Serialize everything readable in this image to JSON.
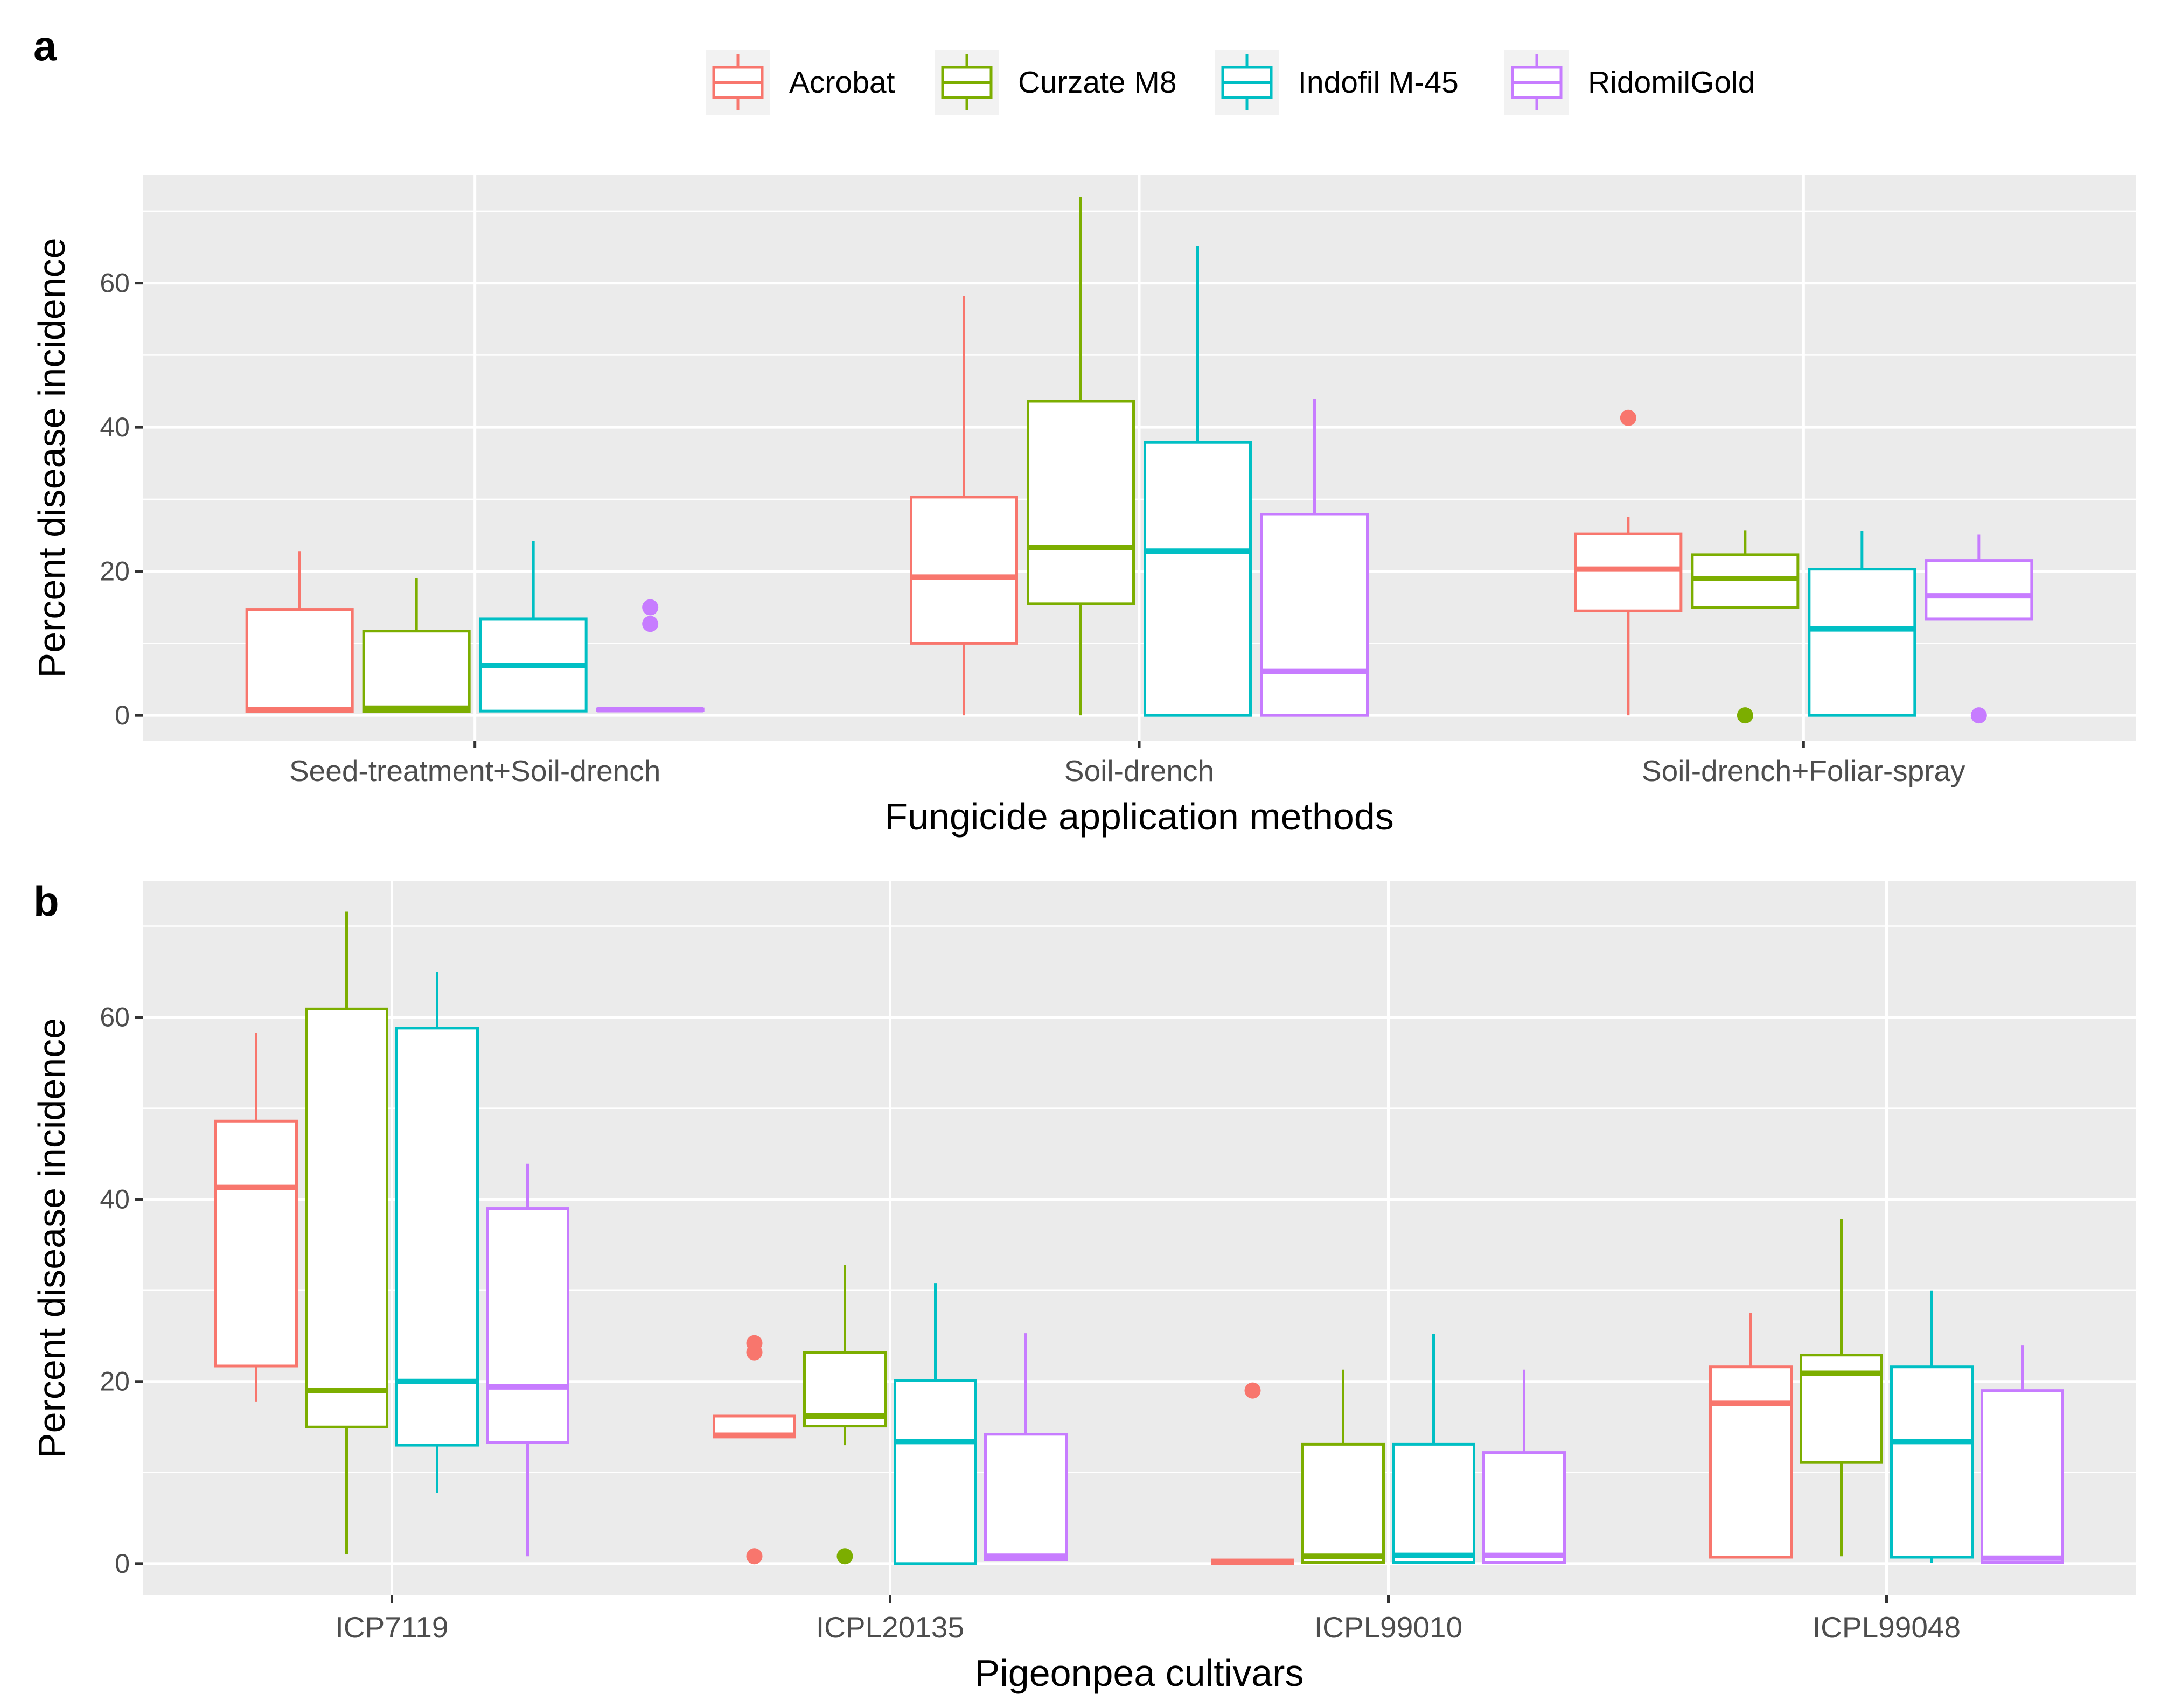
{
  "legend": {
    "entries": [
      {
        "name": "Acrobat",
        "color": "#F8766D"
      },
      {
        "name": "Curzate M8",
        "color": "#7CAE00"
      },
      {
        "name": "Indofil M-45",
        "color": "#00BFC4"
      },
      {
        "name": "RidomilGold",
        "color": "#C77CFF"
      }
    ]
  },
  "chart_data": [
    {
      "type": "box",
      "panel_label": "a",
      "xlabel": "Fungicide application methods",
      "ylabel": "Percent disease incidence",
      "ylim": [
        -3.5,
        75
      ],
      "yticks": [
        0,
        20,
        40,
        60
      ],
      "yticks_labels": [
        "0",
        "20",
        "40",
        "60"
      ],
      "categories": [
        "Seed-treatment+Soil-drench",
        "Soil-drench",
        "Soil-drench+Foliar-spray"
      ],
      "series": [
        {
          "name": "Acrobat",
          "boxes": [
            {
              "lower": 0.5,
              "q1": 0.5,
              "median": 0.8,
              "q3": 14.7,
              "upper": 22.8,
              "outliers": []
            },
            {
              "lower": 0,
              "q1": 10.0,
              "median": 19.2,
              "q3": 30.3,
              "upper": 58.2,
              "outliers": []
            },
            {
              "lower": 0,
              "q1": 14.5,
              "median": 20.3,
              "q3": 25.2,
              "upper": 27.6,
              "outliers": [
                41.3
              ]
            }
          ]
        },
        {
          "name": "Curzate M8",
          "boxes": [
            {
              "lower": 0.5,
              "q1": 0.5,
              "median": 1.0,
              "q3": 11.7,
              "upper": 19.0,
              "outliers": []
            },
            {
              "lower": 0,
              "q1": 15.5,
              "median": 23.3,
              "q3": 43.6,
              "upper": 72.0,
              "outliers": []
            },
            {
              "lower": 15.0,
              "q1": 15.0,
              "median": 19.0,
              "q3": 22.3,
              "upper": 25.7,
              "outliers": [
                0
              ]
            }
          ]
        },
        {
          "name": "Indofil M-45",
          "boxes": [
            {
              "lower": 0.6,
              "q1": 0.6,
              "median": 6.9,
              "q3": 13.4,
              "upper": 24.2,
              "outliers": []
            },
            {
              "lower": 0,
              "q1": 0,
              "median": 22.8,
              "q3": 37.9,
              "upper": 65.2,
              "outliers": []
            },
            {
              "lower": 0,
              "q1": 0,
              "median": 12.0,
              "q3": 20.3,
              "upper": 25.6,
              "outliers": []
            }
          ]
        },
        {
          "name": "RidomilGold",
          "boxes": [
            {
              "lower": 0.7,
              "q1": 0.7,
              "median": 0.8,
              "q3": 0.9,
              "upper": 0.9,
              "outliers": [
                12.7,
                15.0
              ]
            },
            {
              "lower": 0,
              "q1": 0,
              "median": 6.1,
              "q3": 27.9,
              "upper": 43.9,
              "outliers": []
            },
            {
              "lower": 13.4,
              "q1": 13.4,
              "median": 16.6,
              "q3": 21.5,
              "upper": 25.1,
              "outliers": [
                0
              ]
            }
          ]
        }
      ]
    },
    {
      "type": "box",
      "panel_label": "b",
      "xlabel": "Pigeonpea cultivars",
      "ylabel": "Percent disease incidence",
      "ylim": [
        -3.5,
        75
      ],
      "yticks": [
        0,
        20,
        40,
        60
      ],
      "yticks_labels": [
        "0",
        "20",
        "40",
        "60"
      ],
      "categories": [
        "ICP7119",
        "ICPL20135",
        "ICPL99010",
        "ICPL99048"
      ],
      "series": [
        {
          "name": "Acrobat",
          "boxes": [
            {
              "lower": 17.8,
              "q1": 21.7,
              "median": 41.3,
              "q3": 48.6,
              "upper": 58.3,
              "outliers": []
            },
            {
              "lower": 13.9,
              "q1": 13.9,
              "median": 14.1,
              "q3": 16.2,
              "upper": 16.2,
              "outliers": [
                0.8,
                23.2,
                24.2
              ]
            },
            {
              "lower": 0,
              "q1": 0,
              "median": 0.2,
              "q3": 0.4,
              "upper": 0.4,
              "outliers": [
                19.0
              ]
            },
            {
              "lower": 0.7,
              "q1": 0.7,
              "median": 17.6,
              "q3": 21.6,
              "upper": 27.5,
              "outliers": []
            }
          ]
        },
        {
          "name": "Curzate M8",
          "boxes": [
            {
              "lower": 1.0,
              "q1": 15.0,
              "median": 19.0,
              "q3": 60.9,
              "upper": 71.6,
              "outliers": []
            },
            {
              "lower": 13.0,
              "q1": 15.1,
              "median": 16.2,
              "q3": 23.2,
              "upper": 32.8,
              "outliers": [
                0.8
              ]
            },
            {
              "lower": 0.1,
              "q1": 0.1,
              "median": 0.8,
              "q3": 13.1,
              "upper": 21.3,
              "outliers": []
            },
            {
              "lower": 0.8,
              "q1": 11.1,
              "median": 20.9,
              "q3": 22.9,
              "upper": 37.8,
              "outliers": []
            }
          ]
        },
        {
          "name": "Indofil M-45",
          "boxes": [
            {
              "lower": 7.8,
              "q1": 13.0,
              "median": 20.0,
              "q3": 58.8,
              "upper": 65.0,
              "outliers": []
            },
            {
              "lower": 0,
              "q1": 0,
              "median": 13.4,
              "q3": 20.1,
              "upper": 30.8,
              "outliers": []
            },
            {
              "lower": 0.1,
              "q1": 0.1,
              "median": 0.9,
              "q3": 13.1,
              "upper": 25.2,
              "outliers": []
            },
            {
              "lower": 0.1,
              "q1": 0.7,
              "median": 13.4,
              "q3": 21.6,
              "upper": 30.0,
              "outliers": []
            }
          ]
        },
        {
          "name": "RidomilGold",
          "boxes": [
            {
              "lower": 0.8,
              "q1": 13.3,
              "median": 19.4,
              "q3": 39.0,
              "upper": 43.9,
              "outliers": []
            },
            {
              "lower": 0.4,
              "q1": 0.4,
              "median": 0.8,
              "q3": 14.2,
              "upper": 25.3,
              "outliers": []
            },
            {
              "lower": 0.1,
              "q1": 0.1,
              "median": 0.9,
              "q3": 12.2,
              "upper": 21.3,
              "outliers": []
            },
            {
              "lower": 0.1,
              "q1": 0.1,
              "median": 0.6,
              "q3": 19.0,
              "upper": 24.0,
              "outliers": []
            }
          ]
        }
      ]
    }
  ]
}
